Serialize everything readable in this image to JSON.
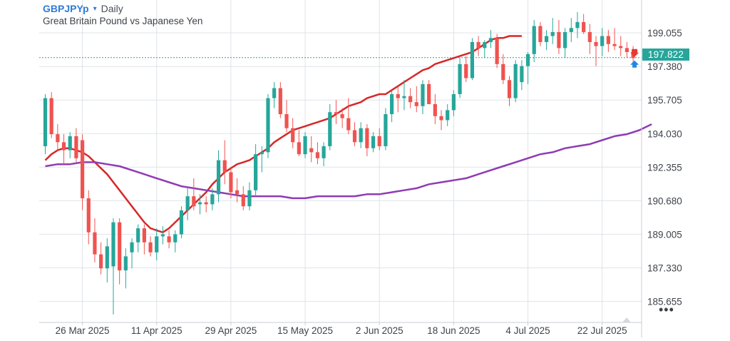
{
  "header": {
    "symbol": "GBPJPYp",
    "caret": "▾",
    "interval": "Daily",
    "subtitle": "Great Britain Pound vs Japanese Yen"
  },
  "price_badge": "197.822",
  "more_icon": "more-horizontal-icon",
  "colors": {
    "up": "#26a69a",
    "down": "#ef5350",
    "ma_fast": "#d62828",
    "ma_slow": "#8e3bb5",
    "price_line": "#26a69a",
    "grid": "#dfe3e8",
    "sell_marker": "#e53935",
    "buy_marker": "#1e88e5"
  },
  "chart_data": {
    "type": "candlestick",
    "ylim": [
      184.6,
      200.7
    ],
    "y_ticks": [
      "199.055",
      "197.380",
      "195.705",
      "194.030",
      "192.355",
      "190.680",
      "189.005",
      "187.330",
      "185.655"
    ],
    "x_ticks": [
      {
        "label": "26 Mar 2025",
        "index": 6
      },
      {
        "label": "11 Apr 2025",
        "index": 18
      },
      {
        "label": "29 Apr 2025",
        "index": 30
      },
      {
        "label": "15 May 2025",
        "index": 42
      },
      {
        "label": "2 Jun 2025",
        "index": 54
      },
      {
        "label": "18 Jun 2025",
        "index": 66
      },
      {
        "label": "4 Jul 2025",
        "index": 78
      },
      {
        "label": "22 Jul 2025",
        "index": 90
      }
    ],
    "current_price": 197.822,
    "ohlc": [
      [
        193.4,
        196.0,
        193.0,
        195.8
      ],
      [
        195.8,
        196.1,
        193.8,
        194.0
      ],
      [
        194.0,
        194.5,
        193.2,
        193.6
      ],
      [
        193.6,
        194.0,
        192.5,
        193.2
      ],
      [
        193.2,
        194.1,
        192.8,
        193.9
      ],
      [
        193.9,
        194.3,
        192.6,
        192.8
      ],
      [
        193.7,
        194.0,
        190.2,
        190.8
      ],
      [
        190.8,
        191.2,
        188.5,
        189.1
      ],
      [
        189.1,
        189.8,
        187.6,
        188.0
      ],
      [
        188.0,
        188.6,
        187.0,
        187.3
      ],
      [
        187.3,
        188.8,
        186.6,
        188.4
      ],
      [
        187.4,
        189.8,
        185.0,
        189.6
      ],
      [
        189.6,
        189.8,
        186.5,
        187.2
      ],
      [
        187.2,
        188.3,
        186.3,
        187.9
      ],
      [
        188.1,
        188.8,
        187.3,
        188.6
      ],
      [
        188.6,
        189.5,
        188.1,
        189.3
      ],
      [
        189.3,
        189.5,
        188.0,
        188.6
      ],
      [
        188.6,
        188.9,
        187.9,
        188.1
      ],
      [
        188.1,
        189.3,
        187.7,
        188.9
      ],
      [
        188.9,
        189.4,
        188.5,
        189.0
      ],
      [
        188.9,
        189.2,
        188.3,
        188.6
      ],
      [
        188.6,
        189.2,
        188.1,
        189.0
      ],
      [
        189.0,
        190.4,
        188.8,
        190.2
      ],
      [
        190.2,
        191.3,
        189.7,
        190.9
      ],
      [
        190.9,
        191.8,
        190.2,
        190.4
      ],
      [
        190.5,
        191.0,
        190.0,
        190.6
      ],
      [
        190.6,
        190.9,
        190.1,
        190.5
      ],
      [
        190.5,
        191.3,
        190.2,
        191.0
      ],
      [
        191.0,
        193.2,
        190.6,
        192.7
      ],
      [
        192.7,
        193.7,
        191.5,
        192.1
      ],
      [
        192.1,
        192.3,
        190.8,
        191.1
      ],
      [
        191.2,
        191.8,
        190.6,
        191.0
      ],
      [
        191.0,
        191.4,
        190.2,
        190.4
      ],
      [
        190.4,
        191.6,
        190.2,
        191.2
      ],
      [
        191.2,
        193.5,
        190.9,
        193.0
      ],
      [
        193.0,
        193.4,
        192.1,
        193.1
      ],
      [
        193.1,
        196.0,
        192.8,
        195.8
      ],
      [
        195.8,
        196.6,
        195.3,
        196.3
      ],
      [
        196.3,
        196.6,
        194.8,
        195.0
      ],
      [
        195.0,
        195.7,
        194.1,
        194.3
      ],
      [
        194.3,
        194.8,
        193.3,
        193.6
      ],
      [
        193.6,
        194.2,
        192.9,
        193.0
      ],
      [
        193.0,
        194.1,
        192.8,
        193.9
      ],
      [
        193.3,
        193.9,
        192.6,
        193.1
      ],
      [
        193.1,
        193.6,
        192.5,
        192.8
      ],
      [
        192.8,
        193.6,
        192.4,
        193.4
      ],
      [
        193.4,
        195.5,
        193.2,
        195.1
      ],
      [
        195.1,
        195.7,
        194.5,
        195.0
      ],
      [
        195.0,
        195.3,
        194.3,
        194.8
      ],
      [
        194.8,
        195.8,
        194.0,
        194.2
      ],
      [
        194.2,
        194.6,
        193.4,
        193.6
      ],
      [
        193.6,
        194.6,
        193.3,
        194.3
      ],
      [
        194.3,
        194.5,
        192.9,
        193.3
      ],
      [
        193.3,
        194.1,
        193.1,
        193.9
      ],
      [
        193.9,
        194.3,
        193.2,
        193.4
      ],
      [
        193.4,
        195.3,
        193.2,
        195.0
      ],
      [
        195.0,
        196.2,
        194.6,
        196.0
      ],
      [
        196.0,
        196.4,
        195.1,
        195.8
      ],
      [
        195.8,
        196.7,
        195.2,
        195.9
      ],
      [
        195.9,
        196.3,
        195.3,
        195.6
      ],
      [
        195.6,
        196.4,
        195.1,
        195.4
      ],
      [
        195.4,
        196.7,
        195.0,
        196.5
      ],
      [
        196.5,
        196.7,
        195.5,
        195.5
      ],
      [
        195.5,
        196.0,
        194.5,
        194.9
      ],
      [
        194.9,
        195.2,
        194.2,
        194.7
      ],
      [
        194.7,
        195.5,
        194.4,
        195.2
      ],
      [
        195.2,
        196.2,
        194.9,
        196.0
      ],
      [
        196.0,
        197.8,
        195.8,
        197.5
      ],
      [
        197.5,
        197.9,
        196.6,
        196.8
      ],
      [
        196.8,
        198.8,
        196.7,
        198.6
      ],
      [
        198.6,
        198.9,
        197.9,
        198.3
      ],
      [
        198.3,
        198.7,
        197.8,
        198.6
      ],
      [
        198.6,
        199.2,
        198.3,
        198.8
      ],
      [
        198.8,
        199.0,
        197.3,
        197.5
      ],
      [
        197.5,
        198.0,
        196.5,
        196.7
      ],
      [
        196.7,
        196.9,
        195.4,
        195.8
      ],
      [
        195.8,
        197.7,
        195.6,
        197.5
      ],
      [
        196.6,
        197.7,
        196.2,
        197.4
      ],
      [
        197.4,
        198.1,
        196.5,
        198.0
      ],
      [
        198.0,
        199.7,
        197.6,
        199.4
      ],
      [
        199.4,
        199.6,
        198.4,
        198.6
      ],
      [
        198.6,
        199.2,
        198.2,
        198.9
      ],
      [
        198.9,
        199.8,
        198.5,
        199.1
      ],
      [
        199.1,
        199.7,
        198.0,
        198.3
      ],
      [
        198.3,
        199.3,
        197.8,
        199.1
      ],
      [
        199.1,
        199.8,
        198.6,
        199.3
      ],
      [
        199.3,
        200.1,
        198.8,
        199.6
      ],
      [
        199.6,
        200.0,
        199.0,
        199.1
      ],
      [
        199.1,
        199.5,
        198.0,
        198.6
      ],
      [
        198.6,
        198.9,
        197.4,
        198.4
      ],
      [
        198.4,
        199.3,
        197.9,
        198.9
      ],
      [
        198.9,
        199.2,
        198.1,
        198.5
      ],
      [
        198.5,
        199.3,
        198.2,
        198.4
      ],
      [
        198.4,
        198.9,
        197.9,
        198.3
      ],
      [
        198.3,
        198.6,
        197.8,
        198.1
      ],
      [
        198.1,
        198.4,
        197.6,
        197.8
      ]
    ],
    "ma_fast": [
      192.7,
      193.0,
      193.2,
      193.3,
      193.3,
      193.2,
      193.1,
      192.9,
      192.6,
      192.3,
      192.0,
      191.6,
      191.2,
      190.8,
      190.4,
      190.0,
      189.6,
      189.3,
      189.2,
      189.1,
      189.3,
      189.6,
      189.9,
      190.2,
      190.5,
      190.8,
      191.1,
      191.5,
      191.8,
      192.1,
      192.3,
      192.5,
      192.6,
      192.7,
      192.9,
      193.1,
      193.3,
      193.6,
      193.8,
      194.0,
      194.2,
      194.3,
      194.4,
      194.5,
      194.6,
      194.7,
      194.8,
      195.0,
      195.2,
      195.4,
      195.5,
      195.6,
      195.8,
      195.9,
      196.0,
      196.0,
      196.2,
      196.4,
      196.6,
      196.8,
      197.0,
      197.2,
      197.3,
      197.5,
      197.6,
      197.7,
      197.8,
      197.9,
      198.0,
      198.1,
      198.3,
      198.5,
      198.7,
      198.8,
      198.8,
      198.9,
      198.9,
      198.9
    ],
    "ma_slow": [
      192.4,
      192.5,
      192.5,
      192.6,
      192.6,
      192.5,
      192.4,
      192.2,
      192.0,
      191.8,
      191.6,
      191.4,
      191.3,
      191.2,
      191.1,
      191.0,
      190.9,
      190.9,
      190.9,
      190.9,
      190.8,
      190.8,
      190.9,
      190.9,
      190.9,
      190.9,
      191.0,
      191.0,
      191.1,
      191.2,
      191.3,
      191.5,
      191.6,
      191.7,
      191.8,
      192.0,
      192.2,
      192.4,
      192.6,
      192.8,
      193.0,
      193.1,
      193.3,
      193.4,
      193.5,
      193.7,
      193.9,
      194.0,
      194.2,
      194.5
    ],
    "ma_fast_start": 0,
    "ma_slow_start": 0,
    "ma_slow_step": 2
  }
}
